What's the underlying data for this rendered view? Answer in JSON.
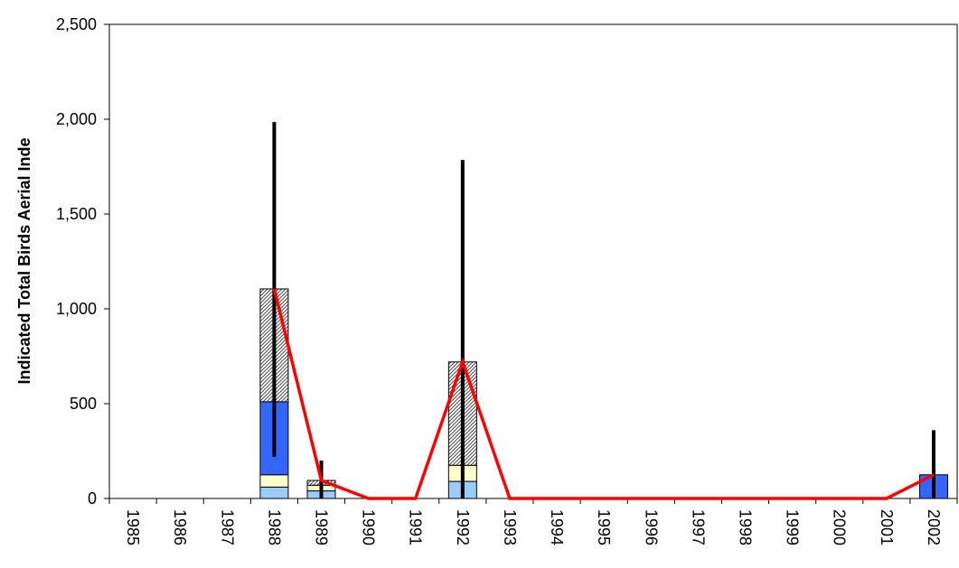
{
  "chart_data": {
    "type": "bar",
    "stacked": true,
    "categories": [
      "1985",
      "1986",
      "1987",
      "1988",
      "1989",
      "1990",
      "1991",
      "1992",
      "1993",
      "1994",
      "1995",
      "1996",
      "1997",
      "1998",
      "1999",
      "2000",
      "2001",
      "2002"
    ],
    "ylabel": "Indicated Total Birds Aerial Inde",
    "ylim": [
      0,
      2500
    ],
    "yticks": [
      0,
      500,
      1000,
      1500,
      2000,
      2500
    ],
    "ytick_labels": [
      "0",
      "500",
      "1,000",
      "1,500",
      "2,000",
      "2,500"
    ],
    "grid": false,
    "legend": "none",
    "stack_series": [
      {
        "color": "#99ccff",
        "pattern": "solid",
        "values": [
          0,
          0,
          0,
          60,
          40,
          0,
          0,
          90,
          0,
          0,
          0,
          0,
          0,
          0,
          0,
          0,
          0,
          0
        ]
      },
      {
        "color": "#ffffcc",
        "pattern": "solid",
        "values": [
          0,
          0,
          0,
          65,
          30,
          0,
          0,
          85,
          0,
          0,
          0,
          0,
          0,
          0,
          0,
          0,
          0,
          0
        ]
      },
      {
        "color": "#3366ff",
        "pattern": "solid",
        "values": [
          0,
          0,
          0,
          385,
          0,
          0,
          0,
          0,
          0,
          0,
          0,
          0,
          0,
          0,
          0,
          0,
          0,
          125
        ]
      },
      {
        "color": "#ffffff",
        "pattern": "hatched",
        "values": [
          0,
          0,
          0,
          595,
          25,
          0,
          0,
          545,
          0,
          0,
          0,
          0,
          0,
          0,
          0,
          0,
          0,
          0
        ]
      }
    ],
    "error_bars": [
      {
        "category": "1988",
        "low": 220,
        "high": 1985
      },
      {
        "category": "1989",
        "low": 0,
        "high": 200
      },
      {
        "category": "1992",
        "low": 0,
        "high": 1785
      },
      {
        "category": "2002",
        "low": 0,
        "high": 360
      }
    ],
    "total_line": {
      "color": "#ff0000",
      "values": [
        null,
        null,
        null,
        1105,
        95,
        0,
        0,
        720,
        0,
        0,
        0,
        0,
        0,
        0,
        0,
        0,
        0,
        125
      ]
    }
  }
}
